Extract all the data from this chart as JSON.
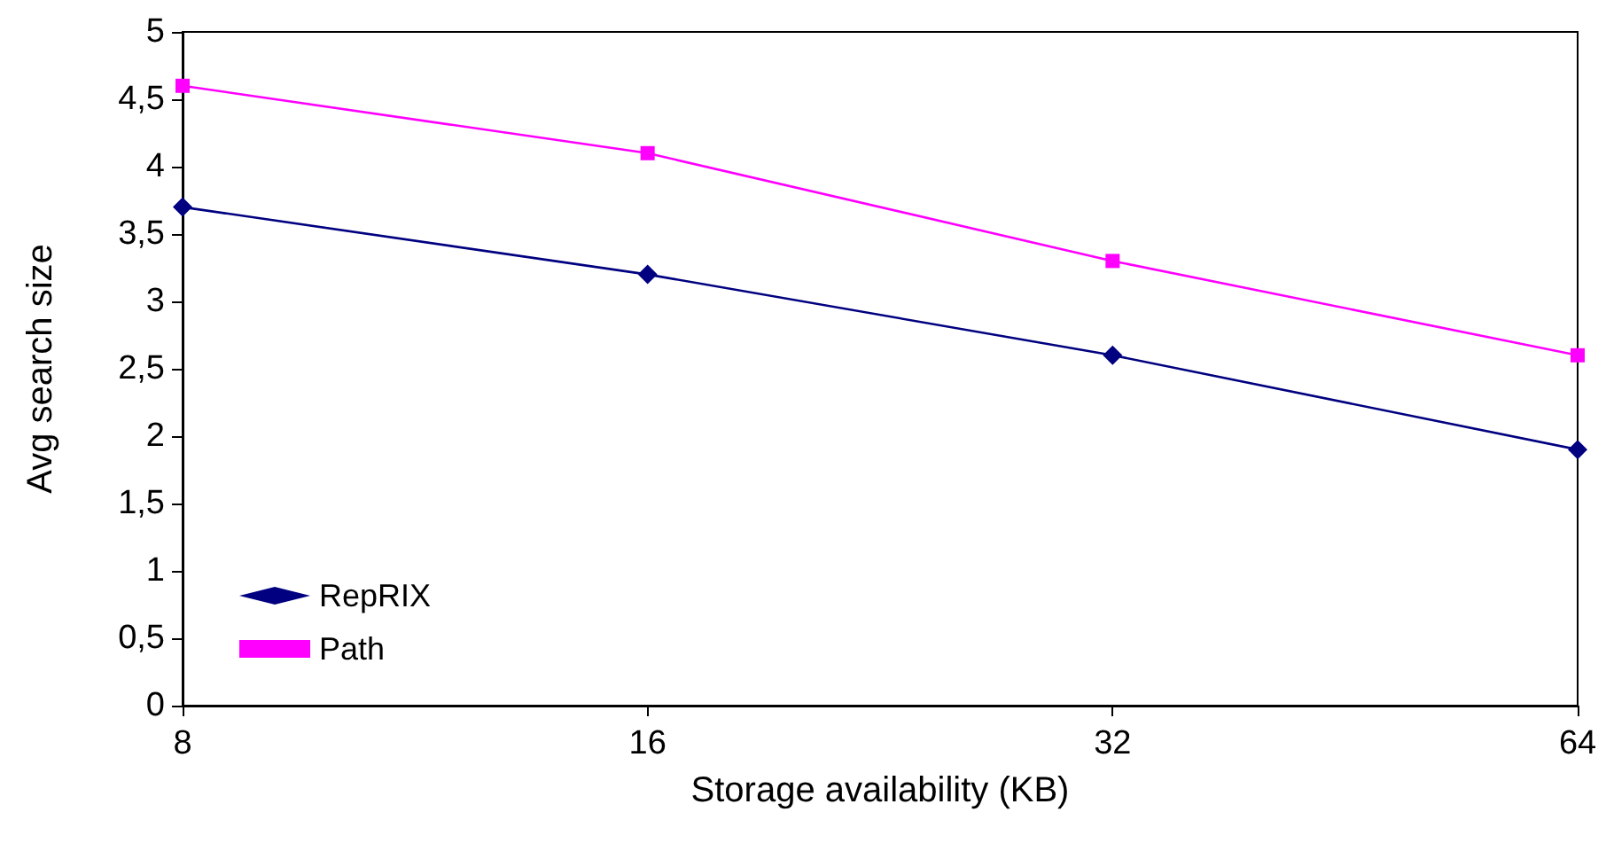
{
  "chart_data": {
    "type": "line",
    "xlabel": "Storage availability (KB)",
    "ylabel": "Avg search size",
    "categories": [
      "8",
      "16",
      "32",
      "64"
    ],
    "series": [
      {
        "name": "RepRIX",
        "color": "#000080",
        "marker": "diamond",
        "values": [
          3.7,
          3.2,
          2.6,
          1.9
        ]
      },
      {
        "name": "Path",
        "color": "#ff00ff",
        "marker": "square",
        "values": [
          4.6,
          4.1,
          3.3,
          2.6
        ]
      }
    ],
    "ylim": [
      0,
      5
    ],
    "yticks": [
      0,
      {
        "value": 0.5,
        "label": "0,5"
      },
      1,
      {
        "value": 1.5,
        "label": "1,5"
      },
      2,
      {
        "value": 2.5,
        "label": "2,5"
      },
      3,
      {
        "value": 3.5,
        "label": "3,5"
      },
      4,
      {
        "value": 4.5,
        "label": "4,5"
      },
      5
    ],
    "grid": false,
    "legend": "bottom left"
  }
}
